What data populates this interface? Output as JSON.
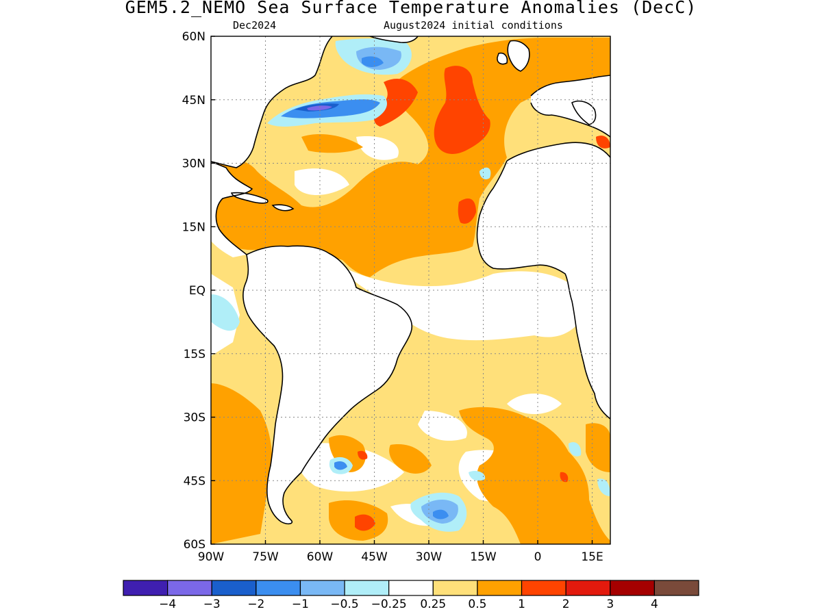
{
  "title": "GEM5.2_NEMO Sea Surface Temperature Anomalies (DecC)",
  "subtitle_left": "Dec2024",
  "subtitle_right": "August2024 initial conditions",
  "map": {
    "lon_range": [
      -90,
      20
    ],
    "lat_range": [
      -60,
      60
    ],
    "lat_ticks": [
      {
        "value": 60,
        "label": "60N"
      },
      {
        "value": 45,
        "label": "45N"
      },
      {
        "value": 30,
        "label": "30N"
      },
      {
        "value": 15,
        "label": "15N"
      },
      {
        "value": 0,
        "label": "EQ"
      },
      {
        "value": -15,
        "label": "15S"
      },
      {
        "value": -30,
        "label": "30S"
      },
      {
        "value": -45,
        "label": "45S"
      },
      {
        "value": -60,
        "label": "60S"
      }
    ],
    "lon_ticks": [
      {
        "value": -90,
        "label": "90W"
      },
      {
        "value": -75,
        "label": "75W"
      },
      {
        "value": -60,
        "label": "60W"
      },
      {
        "value": -45,
        "label": "45W"
      },
      {
        "value": -30,
        "label": "30W"
      },
      {
        "value": -15,
        "label": "15W"
      },
      {
        "value": 0,
        "label": "0"
      },
      {
        "value": 15,
        "label": "15E"
      }
    ],
    "gridlines": "dotted"
  },
  "colorbar": {
    "colors": [
      "#3f1fb0",
      "#7b68e8",
      "#1a5fcc",
      "#3b8ef0",
      "#79b8f5",
      "#b0eef8",
      "#ffffff",
      "#ffe07a",
      "#ffa100",
      "#ff4400",
      "#e31a0d",
      "#a50000",
      "#7a4a3a"
    ],
    "labels": [
      "−4",
      "−3",
      "−2",
      "−1",
      "−0.5",
      "−0.25",
      "0.25",
      "0.5",
      "1",
      "2",
      "3",
      "4"
    ]
  },
  "anomaly_colors": {
    "light_positive": "#ffe07a",
    "positive": "#ffa100",
    "strong_positive": "#ff4400",
    "light_negative": "#b0eef8",
    "negative": "#79b8f5",
    "moderate_negative": "#3b8ef0",
    "strong_negative": "#1a5fcc",
    "very_strong_negative": "#7b68e8"
  }
}
